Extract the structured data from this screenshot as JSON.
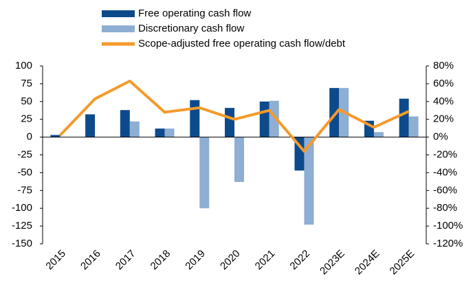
{
  "chart_data": {
    "type": "bar_line",
    "categories": [
      "2015",
      "2016",
      "2017",
      "2018",
      "2019",
      "2020",
      "2021",
      "2022",
      "2023E",
      "2024E",
      "2025E"
    ],
    "series": [
      {
        "name": "Free operating cash flow",
        "type": "bar",
        "color": "#0d4a8c",
        "values": [
          3,
          32,
          38,
          12,
          52,
          41,
          50,
          -47,
          69,
          23,
          54
        ]
      },
      {
        "name": "Discretionary cash flow",
        "type": "bar",
        "color": "#8eaed3",
        "values": [
          0,
          0,
          22,
          12,
          -100,
          -63,
          51,
          -123,
          69,
          7,
          29
        ]
      },
      {
        "name": "Scope-adjusted free operating cash flow/debt",
        "type": "line",
        "axis": "y2",
        "color": "#f39a2b",
        "values": [
          2,
          43,
          63,
          28,
          33,
          20,
          30,
          -16,
          31,
          11,
          29
        ]
      }
    ],
    "ylim": [
      -150,
      100
    ],
    "yticks": [
      -150,
      -125,
      -100,
      -75,
      -50,
      -25,
      0,
      25,
      50,
      75,
      100
    ],
    "y2lim": [
      -120,
      80
    ],
    "y2ticks": [
      {
        "value": -120,
        "label": "-120%"
      },
      {
        "value": -100,
        "label": "-100%"
      },
      {
        "value": -80,
        "label": "-80%"
      },
      {
        "value": -60,
        "label": "-60%"
      },
      {
        "value": -40,
        "label": "-40%"
      },
      {
        "value": -20,
        "label": "-20%"
      },
      {
        "value": 0,
        "label": "0%"
      },
      {
        "value": 20,
        "label": "20%"
      },
      {
        "value": 40,
        "label": "40%"
      },
      {
        "value": 60,
        "label": "60%"
      },
      {
        "value": 80,
        "label": "80%"
      }
    ],
    "grid": false,
    "legend": "top"
  }
}
